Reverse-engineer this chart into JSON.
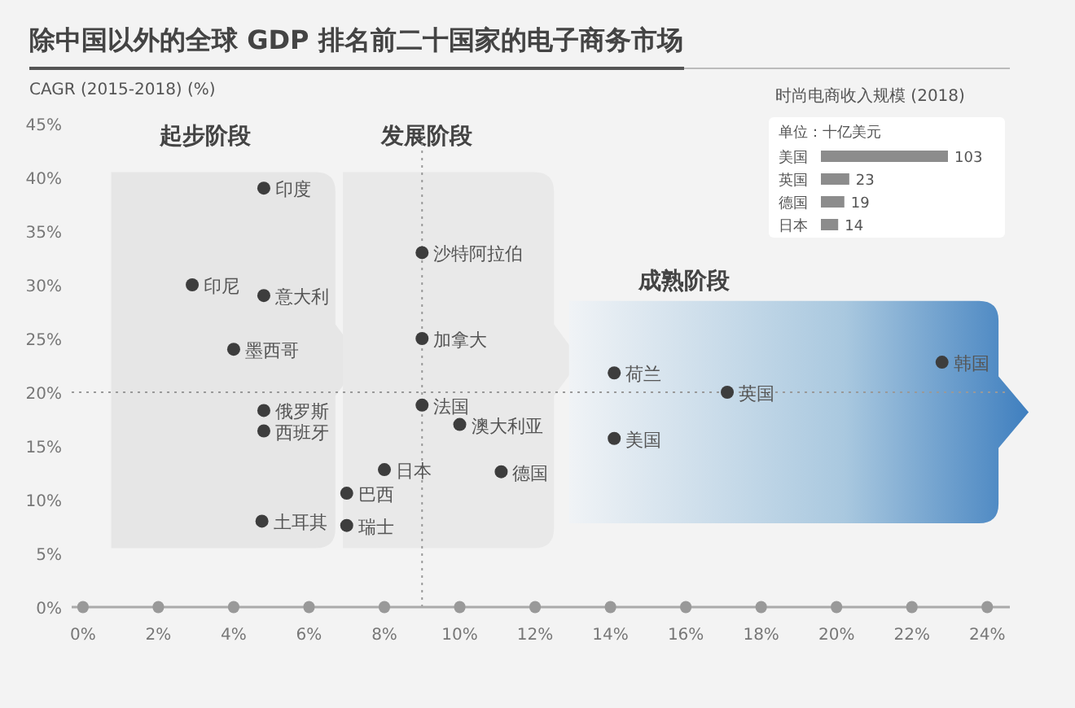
{
  "chart_data": [
    {
      "type": "scatter",
      "title": "除中国以外的全球 GDP 排名前二十国家的电子商务市场",
      "ylabel": "CAGR (2015-2018) (%)",
      "marker": "circle",
      "color": "#3d3d3d",
      "annotations": [
        "起步阶段",
        "发展阶段",
        "成熟阶段"
      ],
      "xlim": [
        -0.3,
        24.6
      ],
      "ylim": [
        0,
        45
      ],
      "xticks": [
        {
          "value": 0,
          "label": "0%"
        },
        {
          "value": 2,
          "label": "2%"
        },
        {
          "value": 4,
          "label": "4%"
        },
        {
          "value": 6,
          "label": "6%"
        },
        {
          "value": 8,
          "label": "8%"
        },
        {
          "value": 10,
          "label": "10%"
        },
        {
          "value": 12,
          "label": "12%"
        },
        {
          "value": 14,
          "label": "14%"
        },
        {
          "value": 16,
          "label": "16%"
        },
        {
          "value": 18,
          "label": "18%"
        },
        {
          "value": 20,
          "label": "20%"
        },
        {
          "value": 22,
          "label": "22%"
        },
        {
          "value": 24,
          "label": "24%"
        }
      ],
      "yticks": [
        {
          "value": 0,
          "label": "0%"
        },
        {
          "value": 5,
          "label": "5%"
        },
        {
          "value": 10,
          "label": "10%"
        },
        {
          "value": 15,
          "label": "15%"
        },
        {
          "value": 20,
          "label": "20%"
        },
        {
          "value": 25,
          "label": "25%"
        },
        {
          "value": 30,
          "label": "30%"
        },
        {
          "value": 35,
          "label": "35%"
        },
        {
          "value": 40,
          "label": "40%"
        },
        {
          "value": 45,
          "label": "45%"
        }
      ],
      "ref_lines": [
        {
          "axis": "y",
          "value": 20,
          "line_style": "dotted"
        },
        {
          "axis": "x",
          "value": 9,
          "line_style": "dotted"
        }
      ],
      "series": [
        {
          "name": "印度",
          "x": [
            4.8
          ],
          "values": [
            39
          ]
        },
        {
          "name": "印尼",
          "x": [
            2.9
          ],
          "values": [
            30
          ]
        },
        {
          "name": "意大利",
          "x": [
            4.8
          ],
          "values": [
            29
          ]
        },
        {
          "name": "墨西哥",
          "x": [
            4.0
          ],
          "values": [
            24
          ]
        },
        {
          "name": "俄罗斯",
          "x": [
            4.8
          ],
          "values": [
            18.3
          ]
        },
        {
          "name": "西班牙",
          "x": [
            4.8
          ],
          "values": [
            16.4
          ]
        },
        {
          "name": "土耳其",
          "x": [
            4.75
          ],
          "values": [
            8
          ]
        },
        {
          "name": "巴西",
          "x": [
            7.0
          ],
          "values": [
            10.6
          ]
        },
        {
          "name": "瑞士",
          "x": [
            7.0
          ],
          "values": [
            7.6
          ]
        },
        {
          "name": "日本",
          "x": [
            8.0
          ],
          "values": [
            12.8
          ]
        },
        {
          "name": "沙特阿拉伯",
          "x": [
            9.0
          ],
          "values": [
            33
          ]
        },
        {
          "name": "加拿大",
          "x": [
            9.0
          ],
          "values": [
            25
          ]
        },
        {
          "name": "法国",
          "x": [
            9.0
          ],
          "values": [
            18.8
          ]
        },
        {
          "name": "澳大利亚",
          "x": [
            10.0
          ],
          "values": [
            17
          ]
        },
        {
          "name": "德国",
          "x": [
            11.1
          ],
          "values": [
            12.6
          ]
        },
        {
          "name": "荷兰",
          "x": [
            14.1
          ],
          "values": [
            21.8
          ]
        },
        {
          "name": "英国",
          "x": [
            17.1
          ],
          "values": [
            20
          ]
        },
        {
          "name": "美国",
          "x": [
            14.1
          ],
          "values": [
            15.7
          ]
        },
        {
          "name": "韩国",
          "x": [
            22.8
          ],
          "values": [
            22.8
          ]
        }
      ]
    },
    {
      "type": "bar",
      "orientation": "horizontal",
      "title": "时尚电商收入规模 (2018)",
      "subtitle": "单位：十亿美元",
      "categories": [
        "美国",
        "英国",
        "德国",
        "日本"
      ],
      "values": [
        103,
        23,
        19,
        14
      ],
      "color": "#8c8c8c",
      "data_labels": true
    }
  ]
}
